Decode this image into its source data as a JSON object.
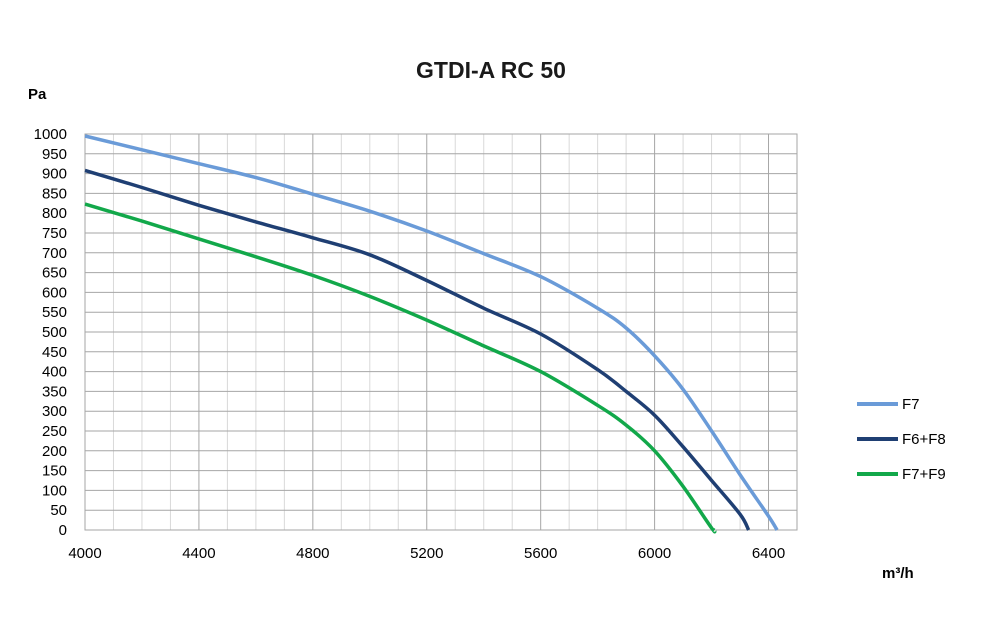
{
  "chart_data": {
    "type": "line",
    "title": "GTDI-A RC 50",
    "ylabel": "Pa",
    "xlabel": "m³/h",
    "xlim": [
      4000,
      6500
    ],
    "ylim": [
      0,
      1000
    ],
    "xticks": [
      4000,
      4400,
      4800,
      5200,
      5600,
      6000,
      6400
    ],
    "yticks": [
      0,
      50,
      100,
      150,
      200,
      250,
      300,
      350,
      400,
      450,
      500,
      550,
      600,
      650,
      700,
      750,
      800,
      850,
      900,
      950,
      1000
    ],
    "grid": true,
    "legend_position": "right",
    "series": [
      {
        "name": "F7",
        "color": "#6a9bd8",
        "points": [
          [
            4000,
            995
          ],
          [
            4200,
            960
          ],
          [
            4400,
            925
          ],
          [
            4600,
            890
          ],
          [
            4800,
            848
          ],
          [
            5000,
            805
          ],
          [
            5200,
            755
          ],
          [
            5400,
            698
          ],
          [
            5600,
            640
          ],
          [
            5800,
            560
          ],
          [
            5900,
            510
          ],
          [
            6000,
            440
          ],
          [
            6100,
            355
          ],
          [
            6200,
            250
          ],
          [
            6300,
            140
          ],
          [
            6400,
            35
          ],
          [
            6430,
            0
          ]
        ]
      },
      {
        "name": "F6+F8",
        "color": "#1f3f73",
        "points": [
          [
            4000,
            908
          ],
          [
            4200,
            865
          ],
          [
            4400,
            820
          ],
          [
            4600,
            778
          ],
          [
            4800,
            738
          ],
          [
            5000,
            695
          ],
          [
            5200,
            630
          ],
          [
            5400,
            560
          ],
          [
            5600,
            495
          ],
          [
            5800,
            405
          ],
          [
            5900,
            350
          ],
          [
            6000,
            290
          ],
          [
            6100,
            210
          ],
          [
            6200,
            125
          ],
          [
            6300,
            40
          ],
          [
            6330,
            0
          ]
        ]
      },
      {
        "name": "F7+F9",
        "color": "#12a84a",
        "points": [
          [
            4000,
            823
          ],
          [
            4200,
            780
          ],
          [
            4400,
            735
          ],
          [
            4600,
            690
          ],
          [
            4800,
            643
          ],
          [
            5000,
            590
          ],
          [
            5200,
            530
          ],
          [
            5400,
            465
          ],
          [
            5600,
            400
          ],
          [
            5800,
            315
          ],
          [
            5900,
            265
          ],
          [
            6000,
            200
          ],
          [
            6100,
            110
          ],
          [
            6200,
            5
          ],
          [
            6210,
            0
          ]
        ]
      }
    ]
  }
}
